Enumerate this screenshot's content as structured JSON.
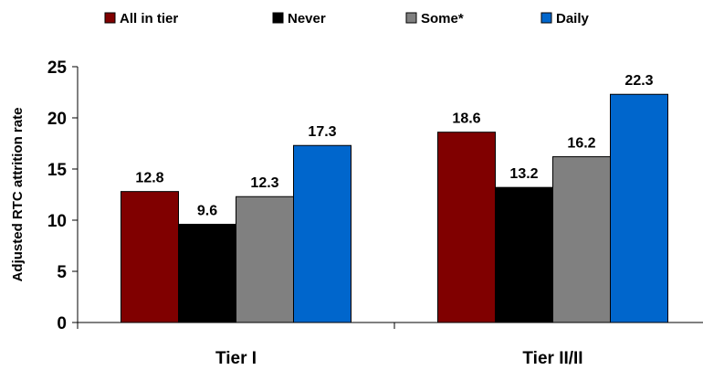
{
  "chart_data": {
    "type": "bar",
    "categories": [
      "Tier I",
      "Tier II/II"
    ],
    "series": [
      {
        "name": "All in tier",
        "color": "#800000",
        "values": [
          12.8,
          18.6
        ]
      },
      {
        "name": "Never",
        "color": "#000000",
        "values": [
          9.6,
          13.2
        ]
      },
      {
        "name": "Some*",
        "color": "#808080",
        "values": [
          12.3,
          16.2
        ]
      },
      {
        "name": "Daily",
        "color": "#0066CC",
        "values": [
          17.3,
          22.3
        ]
      }
    ],
    "data_labels": [
      [
        "12.8",
        "18.6"
      ],
      [
        "9.6",
        "13.2"
      ],
      [
        "12.3",
        "16.2"
      ],
      [
        "17.3",
        "22.3"
      ]
    ],
    "ylabel": "Adjusted RTC attrition rate",
    "xlabel": "",
    "ylim": [
      0,
      25
    ],
    "yticks": [
      "0",
      "5",
      "10",
      "15",
      "20",
      "25"
    ],
    "legend_position": "top",
    "grid": false
  }
}
